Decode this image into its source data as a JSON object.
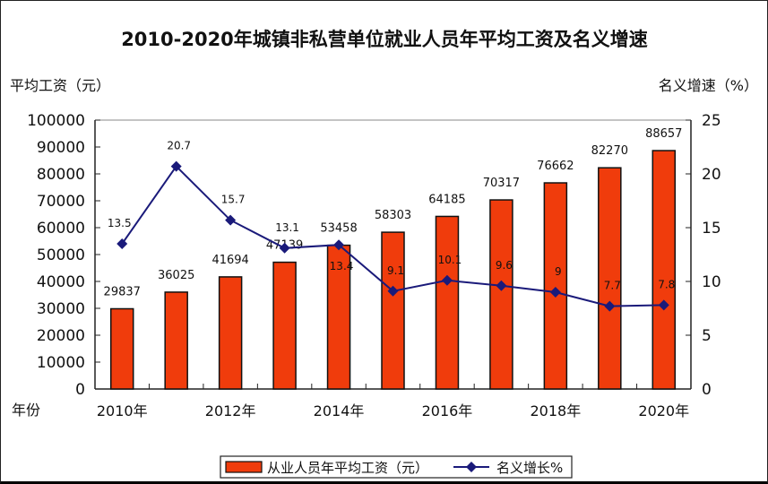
{
  "chart_data": {
    "type": "bar+line",
    "title": "2010-2020年城镇非私营单位就业人员年平均工资及名义增速",
    "ylabel_left": "平均工资（元）",
    "ylabel_right": "名义增速（%）",
    "xlabel": "年份",
    "categories": [
      "2010",
      "2011",
      "2012",
      "2013",
      "2014",
      "2015",
      "2016",
      "2017",
      "2018",
      "2019",
      "2020"
    ],
    "x_tick_labels": [
      "2010年",
      "2012年",
      "2014年",
      "2016年",
      "2018年",
      "2020年"
    ],
    "left_ticks": [
      "0",
      "10000",
      "20000",
      "30000",
      "40000",
      "50000",
      "60000",
      "70000",
      "80000",
      "90000",
      "100000"
    ],
    "right_ticks": [
      "0",
      "5",
      "10",
      "15",
      "20",
      "25"
    ],
    "ylim_left": [
      0,
      100000
    ],
    "ylim_right": [
      0,
      25
    ],
    "series": [
      {
        "name": "从业人员年平均工资（元）",
        "type": "bar",
        "color": "#f03c0c",
        "values": [
          29837,
          36025,
          41694,
          47139,
          53458,
          58303,
          64185,
          70317,
          76662,
          82270,
          88657
        ]
      },
      {
        "name": "名义增长%",
        "type": "line",
        "color": "#1a1a7a",
        "values": [
          13.5,
          20.7,
          15.7,
          13.1,
          13.4,
          9.1,
          10.1,
          9.6,
          9,
          7.7,
          7.8
        ],
        "labels": [
          "13.5",
          "20.7",
          "15.7",
          "13.1",
          "13.4",
          "9.1",
          "10.1",
          "9.6",
          "9",
          "7.7",
          "7.8"
        ]
      }
    ],
    "legend": "bottom"
  }
}
